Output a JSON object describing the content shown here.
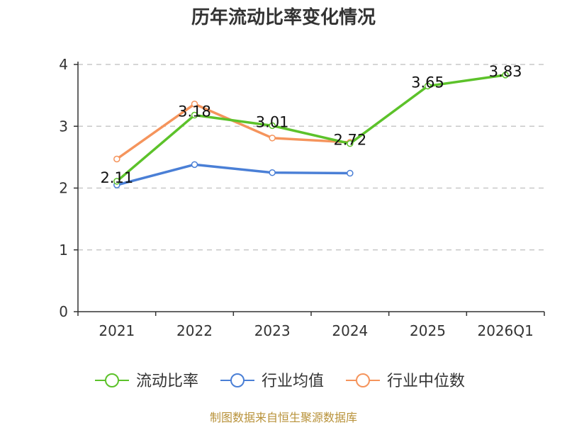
{
  "chart_data": {
    "type": "line",
    "title": "历年流动比率变化情况",
    "categories": [
      "2021",
      "2022",
      "2023",
      "2024",
      "2025",
      "2026Q1"
    ],
    "y_ticks": [
      "0",
      "1",
      "2",
      "3",
      "4"
    ],
    "ylim": [
      0,
      4
    ],
    "grid": true,
    "legend_position": "bottom",
    "series": [
      {
        "name": "流动比率",
        "color": "#5cc22a",
        "values": [
          2.11,
          3.18,
          3.01,
          2.72,
          3.65,
          3.83
        ],
        "labels": [
          "2.11",
          "3.18",
          "3.01",
          "2.72",
          "3.65",
          "3.83"
        ]
      },
      {
        "name": "行业均值",
        "color": "#4a7fd6",
        "values": [
          2.05,
          2.38,
          2.25,
          2.24,
          null,
          null
        ]
      },
      {
        "name": "行业中位数",
        "color": "#f5945c",
        "values": [
          2.47,
          3.36,
          2.81,
          2.74,
          null,
          null
        ]
      }
    ],
    "source": "制图数据来自恒生聚源数据库"
  }
}
